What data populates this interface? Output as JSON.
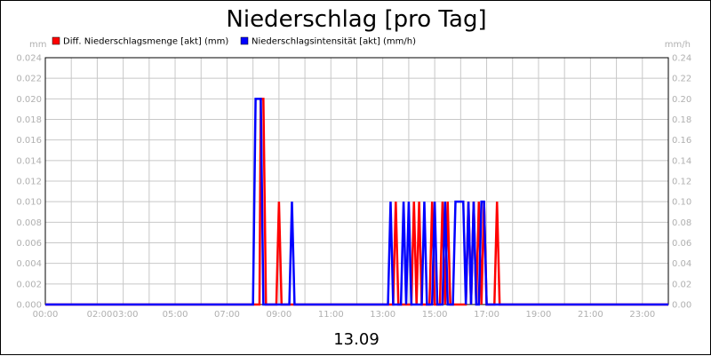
{
  "chart_data": {
    "type": "line",
    "title": "Niederschlag [pro Tag]",
    "xlabel": "13.09",
    "y_left_unit": "mm",
    "y_right_unit": "mm/h",
    "y_left_ticks": [
      "0.000",
      "0.002",
      "0.004",
      "0.006",
      "0.008",
      "0.010",
      "0.012",
      "0.014",
      "0.016",
      "0.018",
      "0.020",
      "0.022",
      "0.024"
    ],
    "y_right_ticks": [
      "0.00",
      "0.02",
      "0.04",
      "0.06",
      "0.08",
      "0.10",
      "0.12",
      "0.14",
      "0.16",
      "0.18",
      "0.20",
      "0.22",
      "0.24"
    ],
    "x_ticks": [
      {
        "label": "00:00",
        "hour": 0
      },
      {
        "label": "02:00",
        "hour": 2
      },
      {
        "label": "03:00",
        "hour": 3
      },
      {
        "label": "05:00",
        "hour": 5
      },
      {
        "label": "07:00",
        "hour": 7
      },
      {
        "label": "09:00",
        "hour": 9
      },
      {
        "label": "11:00",
        "hour": 11
      },
      {
        "label": "13:00",
        "hour": 13
      },
      {
        "label": "15:00",
        "hour": 15
      },
      {
        "label": "17:00",
        "hour": 17
      },
      {
        "label": "19:00",
        "hour": 19
      },
      {
        "label": "21:00",
        "hour": 21
      },
      {
        "label": "23:00",
        "hour": 23
      }
    ],
    "xlim": [
      0,
      24
    ],
    "ylim_left": [
      0,
      0.024
    ],
    "ylim_right": [
      0,
      0.24
    ],
    "grid": true,
    "legend_position": "top-left",
    "series": [
      {
        "name": "Diff. Niederschlagsmenge [akt] (mm)",
        "color": "#ff0000",
        "axis": "left",
        "x": [
          0,
          8.25,
          8.3,
          8.4,
          8.5,
          8.9,
          9.0,
          9.1,
          13.4,
          13.5,
          13.6,
          14.1,
          14.2,
          14.3,
          14.4,
          14.5,
          14.6,
          14.8,
          14.9,
          15.0,
          15.2,
          15.3,
          15.4,
          15.5,
          15.6,
          15.7,
          16.2,
          16.3,
          16.4,
          16.5,
          16.6,
          16.7,
          16.8,
          16.9,
          17.0,
          17.3,
          17.4,
          17.5,
          24
        ],
        "y": [
          0,
          0,
          0.02,
          0.02,
          0,
          0,
          0.01,
          0,
          0,
          0.01,
          0,
          0,
          0.01,
          0,
          0.01,
          0,
          0,
          0,
          0.01,
          0,
          0,
          0.01,
          0,
          0.01,
          0,
          0,
          0,
          0.01,
          0,
          0.01,
          0,
          0.01,
          0,
          0.01,
          0,
          0,
          0.01,
          0,
          0
        ]
      },
      {
        "name": "Niederschlagsintensität [akt] (mm/h)",
        "color": "#0000ff",
        "axis": "right",
        "x": [
          0,
          8.0,
          8.1,
          8.3,
          8.4,
          9.4,
          9.5,
          9.6,
          13.2,
          13.3,
          13.4,
          13.7,
          13.8,
          13.9,
          14.0,
          14.1,
          14.2,
          14.5,
          14.6,
          14.7,
          14.9,
          15.0,
          15.1,
          15.3,
          15.4,
          15.5,
          15.7,
          15.8,
          16.1,
          16.2,
          16.3,
          16.4,
          16.5,
          16.6,
          16.7,
          16.8,
          16.9,
          17.0,
          24
        ],
        "y": [
          0,
          0,
          0.2,
          0.2,
          0,
          0,
          0.1,
          0,
          0,
          0.1,
          0,
          0,
          0.1,
          0,
          0.1,
          0,
          0,
          0,
          0.1,
          0,
          0,
          0.1,
          0,
          0,
          0.1,
          0,
          0,
          0.1,
          0.1,
          0,
          0.1,
          0,
          0.1,
          0,
          0,
          0.1,
          0.1,
          0,
          0
        ]
      }
    ]
  }
}
